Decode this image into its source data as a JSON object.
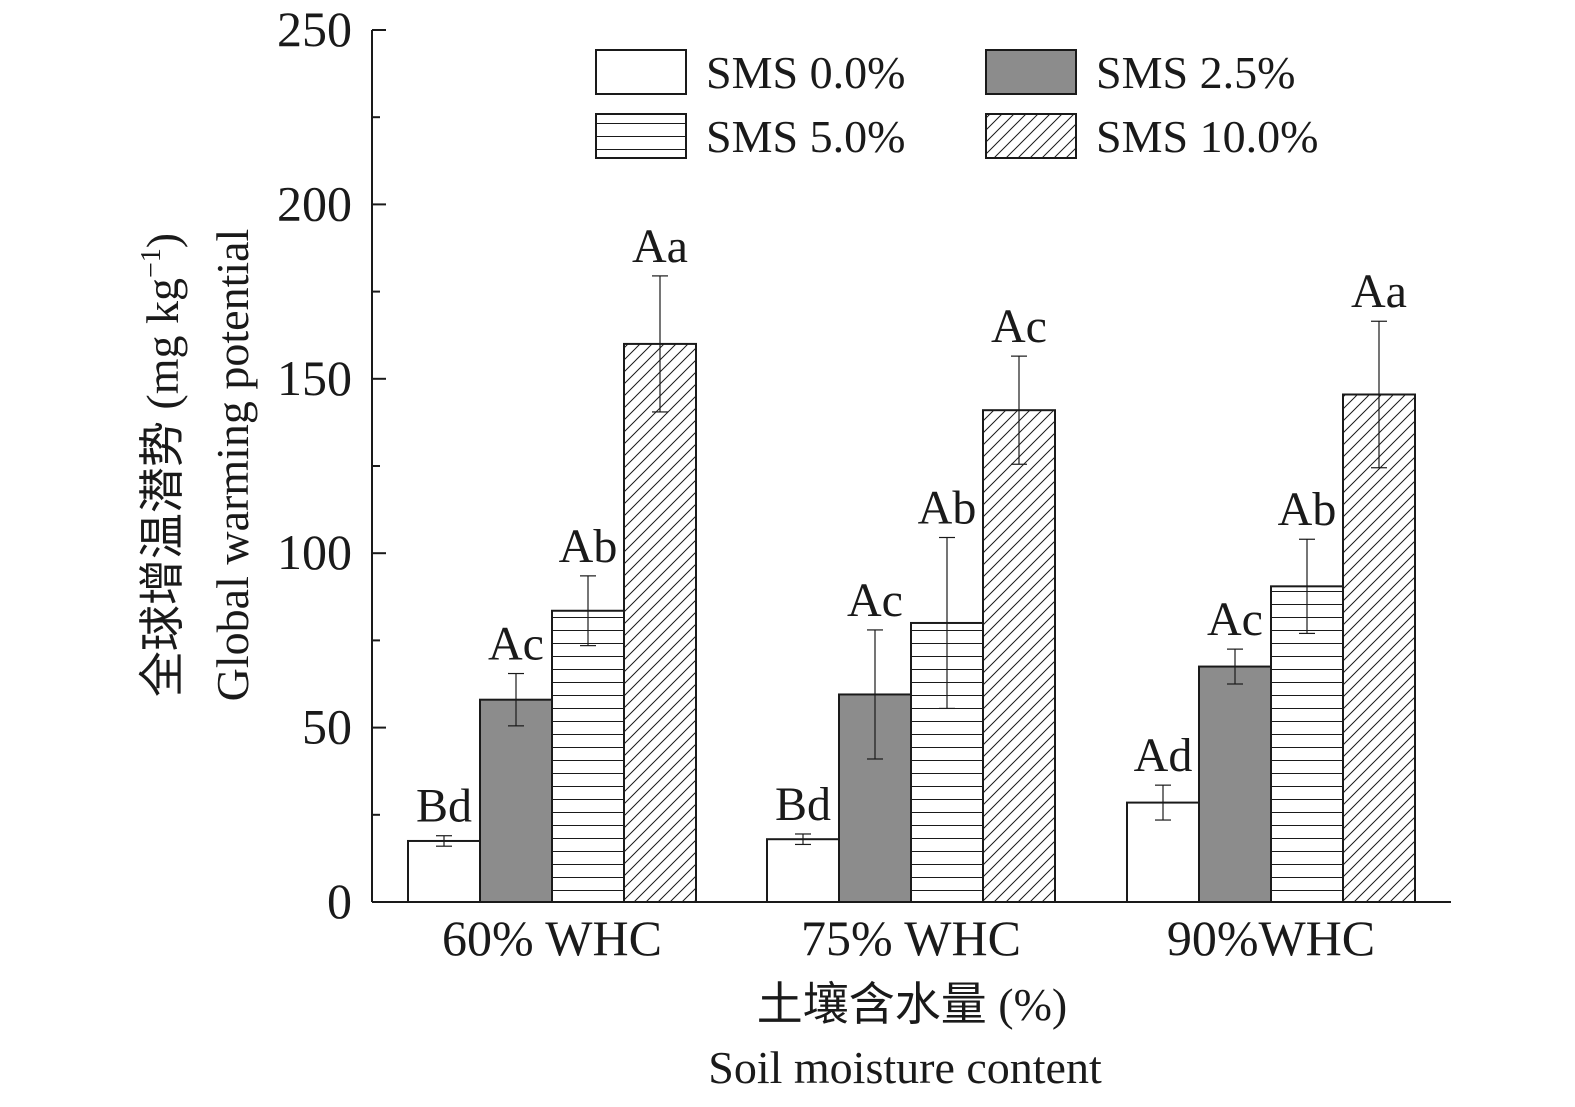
{
  "chart_data": {
    "type": "bar",
    "categories": [
      "60% WHC",
      "75% WHC",
      "90%WHC"
    ],
    "series": [
      {
        "name": "SMS 0.0%",
        "pattern": "white",
        "values": [
          17.5,
          18.0,
          28.5
        ],
        "errors": [
          1.5,
          1.5,
          5.0
        ],
        "labels": [
          "Bd",
          "Bd",
          "Ad"
        ]
      },
      {
        "name": "SMS 2.5%",
        "pattern": "gray",
        "values": [
          58.0,
          59.5,
          67.5
        ],
        "errors": [
          7.5,
          18.5,
          5.0
        ],
        "labels": [
          "Ac",
          "Ac",
          "Ac"
        ]
      },
      {
        "name": "SMS 5.0%",
        "pattern": "horizontal-lines",
        "values": [
          83.5,
          80.0,
          90.5
        ],
        "errors": [
          10.0,
          24.5,
          13.5
        ],
        "labels": [
          "Ab",
          "Ab",
          "Ab"
        ]
      },
      {
        "name": "SMS 10.0%",
        "pattern": "diagonal-hatch",
        "values": [
          160.0,
          141.0,
          145.5
        ],
        "errors": [
          19.5,
          15.5,
          21.0
        ],
        "labels": [
          "Aa",
          "Ac",
          "Aa"
        ]
      }
    ],
    "ylabel_cn": "全球增温潜势 (mg kg",
    "ylabel_sup": "−1",
    "ylabel_close": ")",
    "ylabel_en": "Global warming potential",
    "xlabel_cn": "土壤含水量 (%)",
    "xlabel_en": "Soil moisture content",
    "ylim": [
      0,
      250
    ],
    "yticks": [
      0,
      50,
      100,
      150,
      200,
      250
    ],
    "ytick_labels": [
      "0",
      "50",
      "100",
      "150",
      "200",
      "250"
    ],
    "minor_step": 25,
    "legend_position": "top-right",
    "grid": false,
    "colors": {
      "gray_fill": "#8c8c8c",
      "ink": "#1a1a1a"
    }
  }
}
